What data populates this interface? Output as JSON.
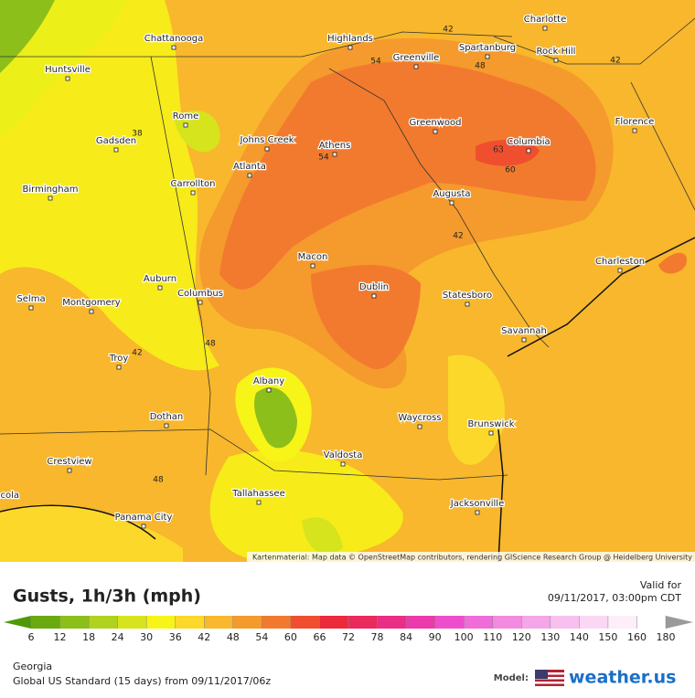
{
  "header": {
    "title": "Gusts, 1h/3h (mph)",
    "valid_label": "Valid for",
    "valid_time": "09/11/2017, 03:00pm CDT"
  },
  "attribution": "Kartenmaterial: Map data © OpenStreetMap contributors, rendering GIScience Research Group @ Heidelberg University",
  "cities": [
    "Charlotte",
    "Chattanooga",
    "Highlands",
    "Spartanburg",
    "Rock Hill",
    "Huntsville",
    "Greenville",
    "Rome",
    "Greenwood",
    "Florence",
    "Gadsden",
    "Johns Creek",
    "Athens",
    "Columbia",
    "Atlanta",
    "Birmingham",
    "Carrollton",
    "Augusta",
    "Charleston",
    "Macon",
    "Auburn",
    "Selma",
    "Montgomery",
    "Columbus",
    "Dublin",
    "Statesboro",
    "Savannah",
    "Troy",
    "Albany",
    "Dothan",
    "Waycross",
    "Brunswick",
    "Valdosta",
    "Crestview",
    "Tallahassee",
    "Jacksonville",
    "Pensacola",
    "Panama City"
  ],
  "contour_labels": [
    42,
    54,
    48,
    42,
    38,
    54,
    63,
    60,
    42,
    48,
    42,
    48
  ],
  "legend": {
    "ticks": [
      6,
      12,
      18,
      24,
      30,
      36,
      42,
      48,
      54,
      60,
      66,
      72,
      78,
      84,
      90,
      100,
      110,
      120,
      130,
      140,
      150,
      160,
      180
    ],
    "colors": [
      "#4e9a06",
      "#6aaa10",
      "#8cbf1a",
      "#b0d21f",
      "#d6e41e",
      "#f7f418",
      "#fbd82a",
      "#f8b72c",
      "#f59a2c",
      "#f27a2e",
      "#ef4f2f",
      "#ec2a3c",
      "#ea2a5c",
      "#ea2e86",
      "#ec3aac",
      "#ee4ecb",
      "#f06cd8",
      "#f28ae0",
      "#f4a6e8",
      "#f7c0ee",
      "#fad8f3",
      "#fdeef9",
      "#ffffff",
      "#9a9a9a"
    ]
  },
  "footer": {
    "region": "Georgia",
    "model_run": "Global US Standard (15 days) from 09/11/2017/06z",
    "model_label": "Model:",
    "brand": "weather.us"
  }
}
